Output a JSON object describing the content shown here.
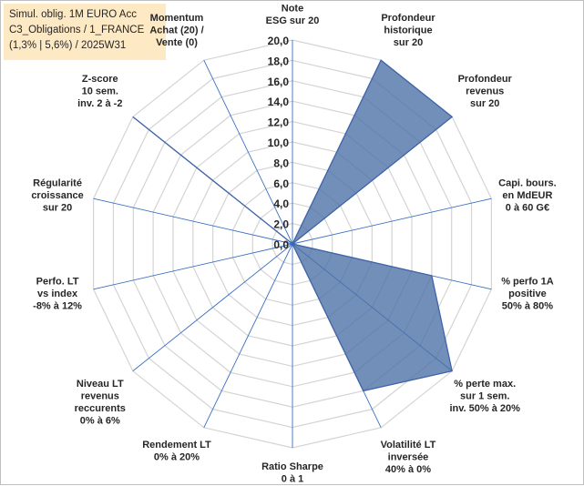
{
  "title_lines": [
    "Simul. oblig. 1M EURO Acc",
    "C3_Obligations / 1_FRANCE",
    "(1,3% | 5,6%) / 2025W31"
  ],
  "chart_data": {
    "type": "radar",
    "r_range": [
      0,
      20
    ],
    "ticks": [
      "0,0",
      "2,0",
      "4,0",
      "6,0",
      "8,0",
      "10,0",
      "12,0",
      "14,0",
      "16,0",
      "18,0",
      "20,0"
    ],
    "categories": [
      [
        "Note",
        "ESG sur 20"
      ],
      [
        "Profondeur",
        "historique",
        "sur 20"
      ],
      [
        "Profondeur",
        "revenus",
        "sur 20"
      ],
      [
        "Capi. bours.",
        "en MdEUR",
        "0 à 60 G€"
      ],
      [
        "% perfo 1A",
        "positive",
        "50% à 80%"
      ],
      [
        "% perte max.",
        "sur 1 sem.",
        "inv. 50% à 20%"
      ],
      [
        "Volatilité LT",
        "inversée",
        "40% à 0%"
      ],
      [
        "Ratio Sharpe",
        "0 à 1"
      ],
      [
        "Rendement LT",
        "0% à 20%"
      ],
      [
        "Niveau LT",
        "revenus",
        "reccurents",
        "0% à 6%"
      ],
      [
        "Perfo. LT",
        "vs index",
        "-8% à 12%"
      ],
      [
        "Régularité",
        "croissance",
        "sur 20"
      ],
      [
        "Z-score",
        "10 sem.",
        "inv. 2 à -2"
      ],
      [
        "Momentum",
        "Achat (20) /",
        "Vente (0)"
      ]
    ],
    "series": [
      {
        "values": [
          0,
          20,
          20,
          0,
          14,
          20,
          16,
          0,
          0,
          0,
          0,
          0,
          20,
          0
        ],
        "fill": "#4a6fa5",
        "stroke": "#3f64a8"
      }
    ],
    "grid": true,
    "legend": "none"
  }
}
